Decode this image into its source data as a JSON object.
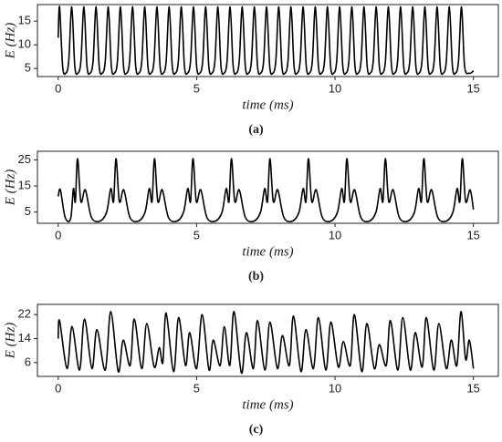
{
  "chart_data": [
    {
      "type": "line",
      "caption": "(a)",
      "xlabel": "time (ms)",
      "ylabel": "E (Hz)",
      "color": "#000000",
      "xlim": [
        -0.75,
        15.9
      ],
      "xticks": [
        0,
        5,
        10,
        15
      ],
      "ylim": [
        3.3,
        18.5
      ],
      "yticks": [
        5,
        10,
        15
      ],
      "x": [
        0,
        0.05,
        0.16,
        0.27,
        0.38,
        0.49,
        0.6,
        0.71,
        0.82,
        0.93,
        1.04,
        1.15,
        1.26,
        1.37,
        1.48,
        1.59,
        1.7,
        1.81,
        1.92,
        2.03,
        2.14,
        2.25,
        2.36,
        2.47,
        2.58,
        2.69,
        2.8,
        2.91,
        3.02,
        3.13,
        3.24,
        3.35,
        3.46,
        3.57,
        3.68,
        3.79,
        3.9,
        4.01,
        4.12,
        4.23,
        4.34,
        4.45,
        4.56,
        4.67,
        4.78,
        4.89,
        5.0,
        5.11,
        5.22,
        5.33,
        5.44,
        5.55,
        5.66,
        5.77,
        5.88,
        5.99,
        6.1,
        6.21,
        6.32,
        6.43,
        6.54,
        6.65,
        6.76,
        6.87,
        6.98,
        7.09,
        7.2,
        7.31,
        7.42,
        7.53,
        7.64,
        7.75,
        7.86,
        7.97,
        8.08,
        8.19,
        8.3,
        8.41,
        8.52,
        8.63,
        8.74,
        8.85,
        8.96,
        9.07,
        9.18,
        9.29,
        9.4,
        9.51,
        9.62,
        9.73,
        9.84,
        9.95,
        10.06,
        10.17,
        10.28,
        10.39,
        10.5,
        10.61,
        10.72,
        10.83,
        10.94,
        11.05,
        11.16,
        11.27,
        11.38,
        11.49,
        11.6,
        11.71,
        11.82,
        11.93,
        12.04,
        12.15,
        12.26,
        12.37,
        12.48,
        12.59,
        12.7,
        12.81,
        12.92,
        13.03,
        13.14,
        13.25,
        13.36,
        13.47,
        13.58,
        13.69,
        13.8,
        13.91,
        14.02,
        14.13,
        14.24,
        14.35,
        14.46,
        14.57,
        14.68,
        14.85,
        15
      ],
      "values": [
        11.5,
        18,
        5.5,
        4,
        6.5,
        18,
        5.5,
        4,
        6.5,
        18,
        5.5,
        4,
        6.5,
        18,
        5.5,
        4,
        6.5,
        18,
        5.5,
        4,
        6.5,
        18,
        5.5,
        4,
        6.5,
        18,
        5.5,
        4,
        6.5,
        18,
        5.5,
        4,
        6.5,
        18,
        5.5,
        4,
        6.5,
        18,
        5.5,
        4,
        6.5,
        18,
        5.5,
        4,
        6.5,
        18,
        5.5,
        4,
        6.5,
        18,
        5.5,
        4,
        6.5,
        18,
        5.5,
        4,
        6.5,
        18,
        5.5,
        4,
        6.5,
        18,
        5.5,
        4,
        6.5,
        18,
        5.5,
        4,
        6.5,
        18,
        5.5,
        4,
        6.5,
        18,
        5.5,
        4,
        6.5,
        18,
        5.5,
        4,
        6.5,
        18,
        5.5,
        4,
        6.5,
        18,
        5.5,
        4,
        6.5,
        18,
        5.5,
        4,
        6.5,
        18,
        5.5,
        4,
        6.5,
        18,
        5.5,
        4,
        6.5,
        18,
        5.5,
        4,
        6.5,
        18,
        5.5,
        4,
        6.5,
        18,
        5.5,
        4,
        6.5,
        18,
        5.5,
        4,
        6.5,
        18,
        5.5,
        4,
        6.5,
        18,
        5.5,
        4,
        6.5,
        18,
        5.5,
        4,
        6.5,
        18,
        5.5,
        4,
        6.5,
        18,
        5.5,
        4,
        4.5
      ]
    },
    {
      "type": "line",
      "caption": "(b)",
      "xlabel": "time (ms)",
      "ylabel": "E (Hz)",
      "color": "#000000",
      "xlim": [
        -0.75,
        15.9
      ],
      "xticks": [
        0,
        5,
        10,
        15
      ],
      "ylim": [
        0.7,
        28.3
      ],
      "yticks": [
        5,
        15,
        25
      ],
      "x": [
        0,
        0.08,
        0.25,
        0.45,
        0.55,
        0.62,
        0.7,
        0.82,
        0.98,
        1.2,
        1.5,
        1.75,
        1.9,
        2.0,
        2.09,
        2.21,
        2.37,
        2.59,
        2.89,
        3.14,
        3.29,
        3.39,
        3.48,
        3.6,
        3.76,
        3.98,
        4.28,
        4.53,
        4.68,
        4.78,
        4.87,
        4.99,
        5.15,
        5.37,
        5.67,
        5.92,
        6.07,
        6.17,
        6.26,
        6.38,
        6.54,
        6.76,
        7.06,
        7.31,
        7.46,
        7.56,
        7.65,
        7.77,
        7.93,
        8.15,
        8.45,
        8.7,
        8.85,
        8.95,
        9.04,
        9.16,
        9.32,
        9.54,
        9.84,
        10.09,
        10.24,
        10.34,
        10.43,
        10.55,
        10.71,
        10.93,
        11.23,
        11.48,
        11.63,
        11.73,
        11.82,
        11.94,
        12.1,
        12.32,
        12.62,
        12.87,
        13.02,
        13.12,
        13.21,
        13.33,
        13.49,
        13.71,
        14.01,
        14.26,
        14.41,
        14.51,
        14.6,
        14.72,
        14.88,
        15.0
      ],
      "values": [
        11,
        13.5,
        3,
        2.5,
        14,
        9,
        25.5,
        9,
        13.5,
        3,
        1.5,
        5,
        14,
        9,
        25.5,
        9,
        13.5,
        3,
        1.5,
        5,
        14,
        9,
        25.5,
        9,
        13.5,
        3,
        1.5,
        5,
        14,
        9,
        25.5,
        9,
        13.5,
        3,
        1.5,
        5,
        14,
        9,
        25.5,
        9,
        13.5,
        3,
        1.5,
        5,
        14,
        9,
        25.5,
        9,
        13.5,
        3,
        1.5,
        5,
        14,
        9,
        25.5,
        9,
        13.5,
        3,
        1.5,
        5,
        14,
        9,
        25.5,
        9,
        13.5,
        3,
        1.5,
        5,
        14,
        9,
        25.5,
        9,
        13.5,
        3,
        1.5,
        5,
        14,
        9,
        25.5,
        9,
        13.5,
        3,
        1.5,
        5,
        14,
        9,
        25.5,
        9,
        13.5,
        6
      ]
    },
    {
      "type": "line",
      "caption": "(c)",
      "xlabel": "time (ms)",
      "ylabel": "E (Hz)",
      "color": "#000000",
      "xlim": [
        -0.75,
        15.9
      ],
      "xticks": [
        0,
        5,
        10,
        15
      ],
      "ylim": [
        1.4,
        25.4
      ],
      "yticks": [
        6,
        14,
        22
      ],
      "x": [
        0,
        0.05,
        0.32,
        0.5,
        0.77,
        0.95,
        1.22,
        1.4,
        1.7,
        1.9,
        2.17,
        2.35,
        2.6,
        2.75,
        3.02,
        3.2,
        3.47,
        3.65,
        3.78,
        3.9,
        4.17,
        4.35,
        4.6,
        4.75,
        5.0,
        5.2,
        5.45,
        5.6,
        5.85,
        6.0,
        6.2,
        6.35,
        6.62,
        6.8,
        7.05,
        7.2,
        7.47,
        7.65,
        7.92,
        8.1,
        8.35,
        8.5,
        8.77,
        8.95,
        9.22,
        9.4,
        9.67,
        9.85,
        10.12,
        10.3,
        10.55,
        10.7,
        10.97,
        11.15,
        11.42,
        11.6,
        11.85,
        12.0,
        12.27,
        12.45,
        12.72,
        12.9,
        13.15,
        13.3,
        13.57,
        13.75,
        14.02,
        14.2,
        14.4,
        14.55,
        14.72,
        14.85,
        15
      ],
      "values": [
        14,
        20,
        4,
        18,
        3.5,
        20.5,
        4,
        17,
        3.5,
        23,
        3,
        13.5,
        5,
        20.5,
        4,
        19,
        4.5,
        11,
        6,
        22.5,
        3,
        21,
        5,
        16,
        4,
        22,
        3.5,
        13.5,
        5,
        18,
        5,
        23,
        2.5,
        16,
        4,
        20,
        3.5,
        19.5,
        4,
        15,
        5,
        21.5,
        3,
        17,
        4,
        21,
        3.5,
        19.5,
        4.5,
        13,
        5,
        22,
        3,
        19,
        4,
        12,
        5,
        20,
        3.5,
        21,
        3.5,
        16,
        4.5,
        21,
        3.5,
        19,
        4,
        13.5,
        5,
        23,
        7,
        13.5,
        4
      ]
    }
  ]
}
